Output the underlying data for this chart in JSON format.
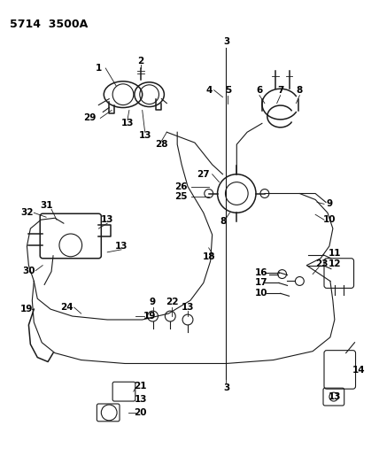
{
  "title": "5714  3500A",
  "bg_color": "#ffffff",
  "line_color": "#1a1a1a",
  "label_color": "#000000",
  "fig_width": 4.28,
  "fig_height": 5.33,
  "dpi": 100
}
